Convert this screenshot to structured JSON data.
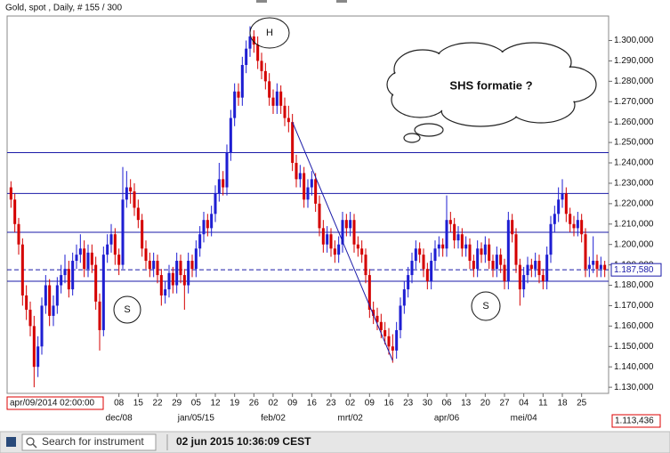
{
  "chart_data": {
    "type": "candlestick",
    "title": "Gold, spot , Daily, # 155 / 300",
    "up_color": "#1e1ed2",
    "down_color": "#d40000",
    "level_color": "#1a1aa8",
    "xlim": [
      -1,
      155
    ],
    "ylim": [
      1127,
      1312
    ],
    "yticks": [
      {
        "value": 1130,
        "label": "1.130,000"
      },
      {
        "value": 1140,
        "label": "1.140,000"
      },
      {
        "value": 1150,
        "label": "1.150,000"
      },
      {
        "value": 1160,
        "label": "1.160,000"
      },
      {
        "value": 1170,
        "label": "1.170,000"
      },
      {
        "value": 1180,
        "label": "1.180,000"
      },
      {
        "value": 1190,
        "label": "1.190,000"
      },
      {
        "value": 1200,
        "label": "1.200,000"
      },
      {
        "value": 1210,
        "label": "1.210,000"
      },
      {
        "value": 1220,
        "label": "1.220,000"
      },
      {
        "value": 1230,
        "label": "1.230,000"
      },
      {
        "value": 1240,
        "label": "1.240,000"
      },
      {
        "value": 1250,
        "label": "1.250,000"
      },
      {
        "value": 1260,
        "label": "1.260,000"
      },
      {
        "value": 1270,
        "label": "1.270,000"
      },
      {
        "value": 1280,
        "label": "1.280,000"
      },
      {
        "value": 1290,
        "label": "1.290,000"
      },
      {
        "value": 1300,
        "label": "1.300,000"
      }
    ],
    "xticks": [
      {
        "value": 28,
        "label": "08"
      },
      {
        "value": 33,
        "label": "15"
      },
      {
        "value": 38,
        "label": "22"
      },
      {
        "value": 43,
        "label": "29"
      },
      {
        "value": 48,
        "label": "05"
      },
      {
        "value": 53,
        "label": "12"
      },
      {
        "value": 58,
        "label": "19"
      },
      {
        "value": 63,
        "label": "26"
      },
      {
        "value": 68,
        "label": "02"
      },
      {
        "value": 73,
        "label": "09"
      },
      {
        "value": 78,
        "label": "16"
      },
      {
        "value": 83,
        "label": "23"
      },
      {
        "value": 88,
        "label": "02"
      },
      {
        "value": 93,
        "label": "09"
      },
      {
        "value": 98,
        "label": "16"
      },
      {
        "value": 103,
        "label": "23"
      },
      {
        "value": 108,
        "label": "30"
      },
      {
        "value": 113,
        "label": "06"
      },
      {
        "value": 118,
        "label": "13"
      },
      {
        "value": 123,
        "label": "20"
      },
      {
        "value": 128,
        "label": "27"
      },
      {
        "value": 133,
        "label": "04"
      },
      {
        "value": 138,
        "label": "11"
      },
      {
        "value": 143,
        "label": "18"
      },
      {
        "value": 148,
        "label": "25"
      }
    ],
    "month_ticks": [
      {
        "value": 28,
        "label": "dec/08"
      },
      {
        "value": 48,
        "label": "jan/05/15"
      },
      {
        "value": 68,
        "label": "feb/02"
      },
      {
        "value": 88,
        "label": "mrt/02"
      },
      {
        "value": 113,
        "label": "apr/06"
      },
      {
        "value": 133,
        "label": "mei/04"
      }
    ],
    "ohlc": [
      [
        1228,
        1231,
        1218,
        1222
      ],
      [
        1222,
        1225,
        1206,
        1210
      ],
      [
        1210,
        1213,
        1195,
        1200
      ],
      [
        1200,
        1203,
        1170,
        1175
      ],
      [
        1175,
        1180,
        1163,
        1168
      ],
      [
        1168,
        1172,
        1155,
        1160
      ],
      [
        1160,
        1165,
        1130,
        1140
      ],
      [
        1140,
        1155,
        1135,
        1150
      ],
      [
        1150,
        1174,
        1146,
        1170
      ],
      [
        1170,
        1185,
        1166,
        1180
      ],
      [
        1180,
        1183,
        1160,
        1165
      ],
      [
        1165,
        1175,
        1160,
        1170
      ],
      [
        1170,
        1184,
        1166,
        1180
      ],
      [
        1180,
        1190,
        1176,
        1185
      ],
      [
        1185,
        1195,
        1181,
        1188
      ],
      [
        1188,
        1192,
        1174,
        1178
      ],
      [
        1178,
        1196,
        1175,
        1192
      ],
      [
        1192,
        1200,
        1188,
        1195
      ],
      [
        1195,
        1205,
        1191,
        1198
      ],
      [
        1198,
        1202,
        1184,
        1188
      ],
      [
        1188,
        1200,
        1184,
        1196
      ],
      [
        1196,
        1200,
        1186,
        1190
      ],
      [
        1190,
        1194,
        1168,
        1172
      ],
      [
        1172,
        1176,
        1148,
        1158
      ],
      [
        1158,
        1199,
        1155,
        1195
      ],
      [
        1195,
        1205,
        1191,
        1200
      ],
      [
        1200,
        1210,
        1196,
        1205
      ],
      [
        1205,
        1208,
        1190,
        1195
      ],
      [
        1195,
        1198,
        1185,
        1190
      ],
      [
        1190,
        1238,
        1188,
        1222
      ],
      [
        1222,
        1236,
        1218,
        1228
      ],
      [
        1228,
        1232,
        1220,
        1226
      ],
      [
        1226,
        1230,
        1214,
        1218
      ],
      [
        1218,
        1222,
        1208,
        1212
      ],
      [
        1212,
        1215,
        1194,
        1198
      ],
      [
        1198,
        1202,
        1188,
        1192
      ],
      [
        1192,
        1196,
        1184,
        1188
      ],
      [
        1188,
        1196,
        1184,
        1192
      ],
      [
        1192,
        1195,
        1181,
        1185
      ],
      [
        1185,
        1188,
        1170,
        1175
      ],
      [
        1175,
        1182,
        1171,
        1178
      ],
      [
        1178,
        1190,
        1174,
        1186
      ],
      [
        1186,
        1189,
        1176,
        1180
      ],
      [
        1180,
        1196,
        1176,
        1192
      ],
      [
        1192,
        1195,
        1181,
        1185
      ],
      [
        1185,
        1188,
        1168,
        1180
      ],
      [
        1180,
        1196,
        1176,
        1192
      ],
      [
        1192,
        1195,
        1184,
        1188
      ],
      [
        1188,
        1202,
        1184,
        1198
      ],
      [
        1198,
        1209,
        1194,
        1205
      ],
      [
        1205,
        1216,
        1201,
        1212
      ],
      [
        1212,
        1215,
        1204,
        1208
      ],
      [
        1208,
        1219,
        1204,
        1215
      ],
      [
        1215,
        1229,
        1211,
        1225
      ],
      [
        1225,
        1240,
        1221,
        1232
      ],
      [
        1232,
        1236,
        1224,
        1228
      ],
      [
        1228,
        1249,
        1224,
        1245
      ],
      [
        1245,
        1266,
        1241,
        1262
      ],
      [
        1262,
        1279,
        1258,
        1275
      ],
      [
        1275,
        1279,
        1268,
        1272
      ],
      [
        1272,
        1292,
        1268,
        1288
      ],
      [
        1288,
        1300,
        1284,
        1296
      ],
      [
        1296,
        1307,
        1292,
        1302
      ],
      [
        1302,
        1305,
        1294,
        1298
      ],
      [
        1298,
        1302,
        1286,
        1290
      ],
      [
        1290,
        1294,
        1281,
        1285
      ],
      [
        1285,
        1289,
        1276,
        1280
      ],
      [
        1280,
        1284,
        1268,
        1272
      ],
      [
        1272,
        1276,
        1264,
        1268
      ],
      [
        1268,
        1279,
        1264,
        1275
      ],
      [
        1275,
        1278,
        1264,
        1268
      ],
      [
        1268,
        1272,
        1258,
        1262
      ],
      [
        1262,
        1268,
        1255,
        1260
      ],
      [
        1260,
        1264,
        1236,
        1240
      ],
      [
        1240,
        1244,
        1228,
        1232
      ],
      [
        1232,
        1239,
        1228,
        1235
      ],
      [
        1235,
        1238,
        1218,
        1222
      ],
      [
        1222,
        1232,
        1218,
        1228
      ],
      [
        1228,
        1236,
        1224,
        1232
      ],
      [
        1232,
        1235,
        1216,
        1220
      ],
      [
        1220,
        1224,
        1204,
        1208
      ],
      [
        1208,
        1212,
        1196,
        1200
      ],
      [
        1200,
        1209,
        1196,
        1205
      ],
      [
        1205,
        1208,
        1194,
        1198
      ],
      [
        1198,
        1202,
        1191,
        1195
      ],
      [
        1195,
        1204,
        1191,
        1200
      ],
      [
        1200,
        1216,
        1196,
        1212
      ],
      [
        1212,
        1215,
        1204,
        1208
      ],
      [
        1208,
        1216,
        1204,
        1212
      ],
      [
        1212,
        1215,
        1196,
        1200
      ],
      [
        1200,
        1204,
        1194,
        1198
      ],
      [
        1198,
        1202,
        1191,
        1195
      ],
      [
        1195,
        1198,
        1181,
        1185
      ],
      [
        1185,
        1188,
        1164,
        1168
      ],
      [
        1168,
        1172,
        1161,
        1165
      ],
      [
        1165,
        1169,
        1158,
        1162
      ],
      [
        1162,
        1166,
        1154,
        1158
      ],
      [
        1158,
        1162,
        1151,
        1155
      ],
      [
        1155,
        1159,
        1146,
        1150
      ],
      [
        1150,
        1156,
        1142,
        1148
      ],
      [
        1148,
        1162,
        1144,
        1158
      ],
      [
        1158,
        1174,
        1154,
        1170
      ],
      [
        1170,
        1182,
        1166,
        1178
      ],
      [
        1178,
        1189,
        1174,
        1185
      ],
      [
        1185,
        1196,
        1181,
        1192
      ],
      [
        1192,
        1202,
        1188,
        1198
      ],
      [
        1198,
        1201,
        1191,
        1195
      ],
      [
        1195,
        1198,
        1184,
        1188
      ],
      [
        1188,
        1191,
        1178,
        1182
      ],
      [
        1182,
        1196,
        1178,
        1192
      ],
      [
        1192,
        1202,
        1188,
        1198
      ],
      [
        1198,
        1204,
        1194,
        1200
      ],
      [
        1200,
        1203,
        1194,
        1198
      ],
      [
        1198,
        1224,
        1194,
        1212
      ],
      [
        1212,
        1216,
        1206,
        1210
      ],
      [
        1210,
        1213,
        1198,
        1202
      ],
      [
        1202,
        1209,
        1198,
        1205
      ],
      [
        1205,
        1208,
        1194,
        1198
      ],
      [
        1198,
        1204,
        1194,
        1200
      ],
      [
        1200,
        1203,
        1188,
        1192
      ],
      [
        1192,
        1195,
        1184,
        1188
      ],
      [
        1188,
        1202,
        1184,
        1198
      ],
      [
        1198,
        1201,
        1191,
        1195
      ],
      [
        1195,
        1204,
        1191,
        1200
      ],
      [
        1200,
        1203,
        1188,
        1192
      ],
      [
        1192,
        1195,
        1184,
        1188
      ],
      [
        1188,
        1199,
        1184,
        1195
      ],
      [
        1195,
        1198,
        1186,
        1190
      ],
      [
        1190,
        1193,
        1178,
        1182
      ],
      [
        1182,
        1216,
        1178,
        1212
      ],
      [
        1212,
        1215,
        1201,
        1205
      ],
      [
        1205,
        1208,
        1186,
        1190
      ],
      [
        1190,
        1193,
        1170,
        1178
      ],
      [
        1178,
        1189,
        1174,
        1185
      ],
      [
        1185,
        1194,
        1181,
        1190
      ],
      [
        1190,
        1193,
        1184,
        1188
      ],
      [
        1188,
        1196,
        1184,
        1192
      ],
      [
        1192,
        1195,
        1181,
        1185
      ],
      [
        1185,
        1188,
        1178,
        1182
      ],
      [
        1182,
        1199,
        1178,
        1195
      ],
      [
        1195,
        1214,
        1191,
        1210
      ],
      [
        1210,
        1219,
        1206,
        1215
      ],
      [
        1215,
        1228,
        1211,
        1222
      ],
      [
        1222,
        1232,
        1218,
        1225
      ],
      [
        1225,
        1228,
        1211,
        1215
      ],
      [
        1215,
        1218,
        1206,
        1210
      ],
      [
        1210,
        1214,
        1204,
        1208
      ],
      [
        1208,
        1216,
        1204,
        1212
      ],
      [
        1212,
        1215,
        1201,
        1205
      ],
      [
        1205,
        1208,
        1184,
        1188
      ],
      [
        1188,
        1194,
        1184,
        1190
      ],
      [
        1190,
        1204,
        1186,
        1192
      ],
      [
        1192,
        1195,
        1184,
        1188
      ],
      [
        1188,
        1194,
        1184,
        1190
      ],
      [
        1190,
        1192,
        1184,
        1187.58
      ]
    ],
    "levels": [
      1245,
      1225,
      1206,
      1182
    ],
    "current_price": {
      "value": 1187.58,
      "label": "1.187,580"
    },
    "trendline": [
      [
        73,
        1260
      ],
      [
        99,
        1143
      ]
    ],
    "annotations": [
      "H",
      "S",
      "S",
      "SHS formatie ?"
    ],
    "cursor_date": "apr/09/2014 02:00:00",
    "cursor_value": "1.113,436",
    "search_placeholder": "Search for instrument",
    "timestamp": "02 jun 2015 10:36:09 CEST"
  }
}
